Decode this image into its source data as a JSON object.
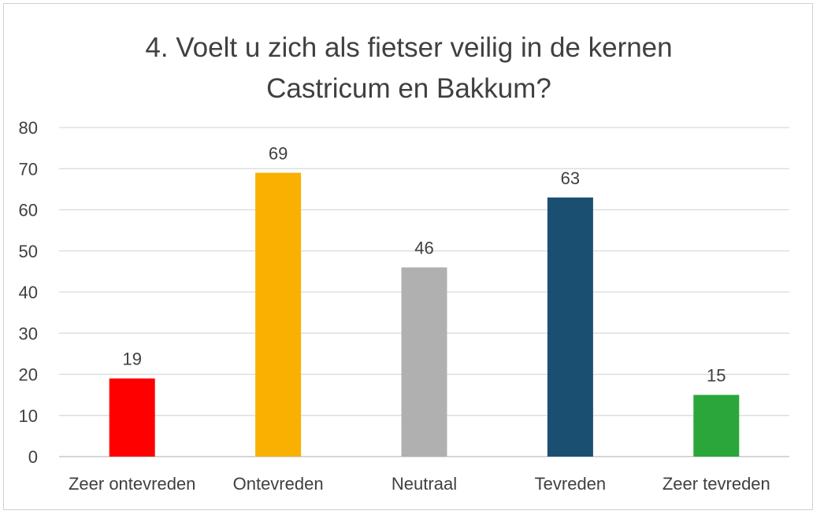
{
  "chart_data": {
    "type": "bar",
    "title_lines": [
      "4. Voelt u zich als fietser veilig in de kernen",
      "Castricum en Bakkum?"
    ],
    "categories": [
      "Zeer ontevreden",
      "Ontevreden",
      "Neutraal",
      "Tevreden",
      "Zeer tevreden"
    ],
    "values": [
      19,
      69,
      46,
      63,
      15
    ],
    "colors": [
      "#ff0000",
      "#f9b000",
      "#b0b0b0",
      "#1b4f72",
      "#2ba63b"
    ],
    "ylim": [
      0,
      80
    ],
    "yticks": [
      0,
      10,
      20,
      30,
      40,
      50,
      60,
      70,
      80
    ],
    "grid": true,
    "data_labels": true,
    "legend": "none"
  }
}
